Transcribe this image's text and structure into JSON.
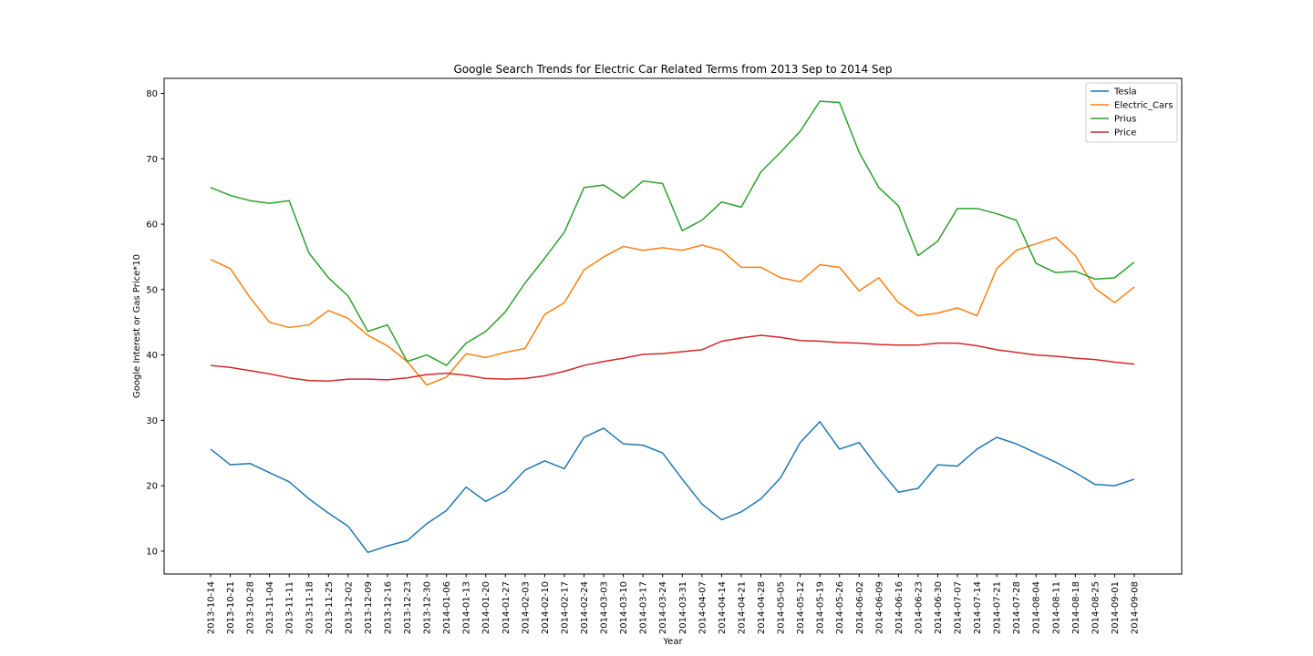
{
  "chart_data": {
    "type": "line",
    "title": "Google Search Trends for Electric Car Related Terms from 2013 Sep to 2014 Sep",
    "xlabel": "Year",
    "ylabel": "Google Interest or Gas Price*10",
    "ylim": [
      6.5,
      82.3
    ],
    "yticks": [
      10,
      20,
      30,
      40,
      50,
      60,
      70,
      80
    ],
    "grid": false,
    "legend_position": "top-right",
    "x": [
      "2013-10-14",
      "2013-10-21",
      "2013-10-28",
      "2013-11-04",
      "2013-11-11",
      "2013-11-18",
      "2013-11-25",
      "2013-12-02",
      "2013-12-09",
      "2013-12-16",
      "2013-12-23",
      "2013-12-30",
      "2014-01-06",
      "2014-01-13",
      "2014-01-20",
      "2014-01-27",
      "2014-02-03",
      "2014-02-10",
      "2014-02-17",
      "2014-02-24",
      "2014-03-03",
      "2014-03-10",
      "2014-03-17",
      "2014-03-24",
      "2014-03-31",
      "2014-04-07",
      "2014-04-14",
      "2014-04-21",
      "2014-04-28",
      "2014-05-05",
      "2014-05-12",
      "2014-05-19",
      "2014-05-26",
      "2014-06-02",
      "2014-06-09",
      "2014-06-16",
      "2014-06-23",
      "2014-06-30",
      "2014-07-07",
      "2014-07-14",
      "2014-07-21",
      "2014-07-28",
      "2014-08-04",
      "2014-08-11",
      "2014-08-18",
      "2014-08-25",
      "2014-09-01",
      "2014-09-08"
    ],
    "series": [
      {
        "name": "Tesla",
        "color": "#1f77b4",
        "values": [
          25.6,
          23.2,
          23.4,
          22.0,
          20.6,
          18.0,
          15.8,
          13.8,
          9.8,
          10.8,
          11.6,
          14.2,
          16.2,
          19.8,
          17.6,
          19.2,
          22.4,
          23.8,
          22.6,
          27.4,
          28.8,
          26.4,
          26.2,
          25.0,
          21.0,
          17.2,
          14.8,
          16.0,
          18.0,
          21.2,
          26.6,
          29.8,
          25.6,
          26.6,
          22.6,
          19.0,
          19.6,
          23.2,
          23.0,
          25.6,
          27.4,
          26.4,
          25.0,
          23.6,
          22.0,
          20.2,
          20.0,
          21.0
        ]
      },
      {
        "name": "Electric_Cars",
        "color": "#ff7f0e",
        "values": [
          54.6,
          53.2,
          48.8,
          45.0,
          44.2,
          44.6,
          46.8,
          45.6,
          43.0,
          41.4,
          39.0,
          35.4,
          36.6,
          40.2,
          39.6,
          40.4,
          41.0,
          46.2,
          48.0,
          53.0,
          55.0,
          56.6,
          56.0,
          56.4,
          56.0,
          56.8,
          56.0,
          53.4,
          53.4,
          51.8,
          51.2,
          53.8,
          53.4,
          49.8,
          51.8,
          48.0,
          46.0,
          46.4,
          47.2,
          46.0,
          53.2,
          56.0,
          57.0,
          58.0,
          55.2,
          50.2,
          48.0,
          50.4
        ]
      },
      {
        "name": "Prius",
        "color": "#2ca02c",
        "values": [
          65.6,
          64.4,
          63.6,
          63.2,
          63.6,
          55.6,
          51.8,
          49.0,
          43.6,
          44.6,
          39.0,
          40.0,
          38.4,
          41.8,
          43.6,
          46.6,
          51.0,
          54.8,
          58.8,
          65.6,
          66.0,
          64.0,
          66.6,
          66.2,
          59.0,
          60.6,
          63.4,
          62.6,
          68.0,
          71.0,
          74.2,
          78.8,
          78.6,
          71.0,
          65.6,
          62.8,
          55.2,
          57.4,
          62.4,
          62.4,
          61.6,
          60.6,
          54.0,
          52.6,
          52.8,
          51.6,
          51.8,
          54.2
        ]
      },
      {
        "name": "Price",
        "color": "#d62728",
        "values": [
          38.4,
          38.1,
          37.6,
          37.1,
          36.5,
          36.1,
          36.0,
          36.3,
          36.3,
          36.2,
          36.5,
          37.0,
          37.2,
          36.9,
          36.4,
          36.3,
          36.4,
          36.8,
          37.5,
          38.4,
          39.0,
          39.5,
          40.1,
          40.2,
          40.5,
          40.8,
          42.1,
          42.6,
          43.0,
          42.7,
          42.2,
          42.1,
          41.9,
          41.8,
          41.6,
          41.5,
          41.5,
          41.8,
          41.8,
          41.4,
          40.8,
          40.4,
          40.0,
          39.8,
          39.5,
          39.3,
          38.9,
          38.6
        ]
      }
    ]
  }
}
